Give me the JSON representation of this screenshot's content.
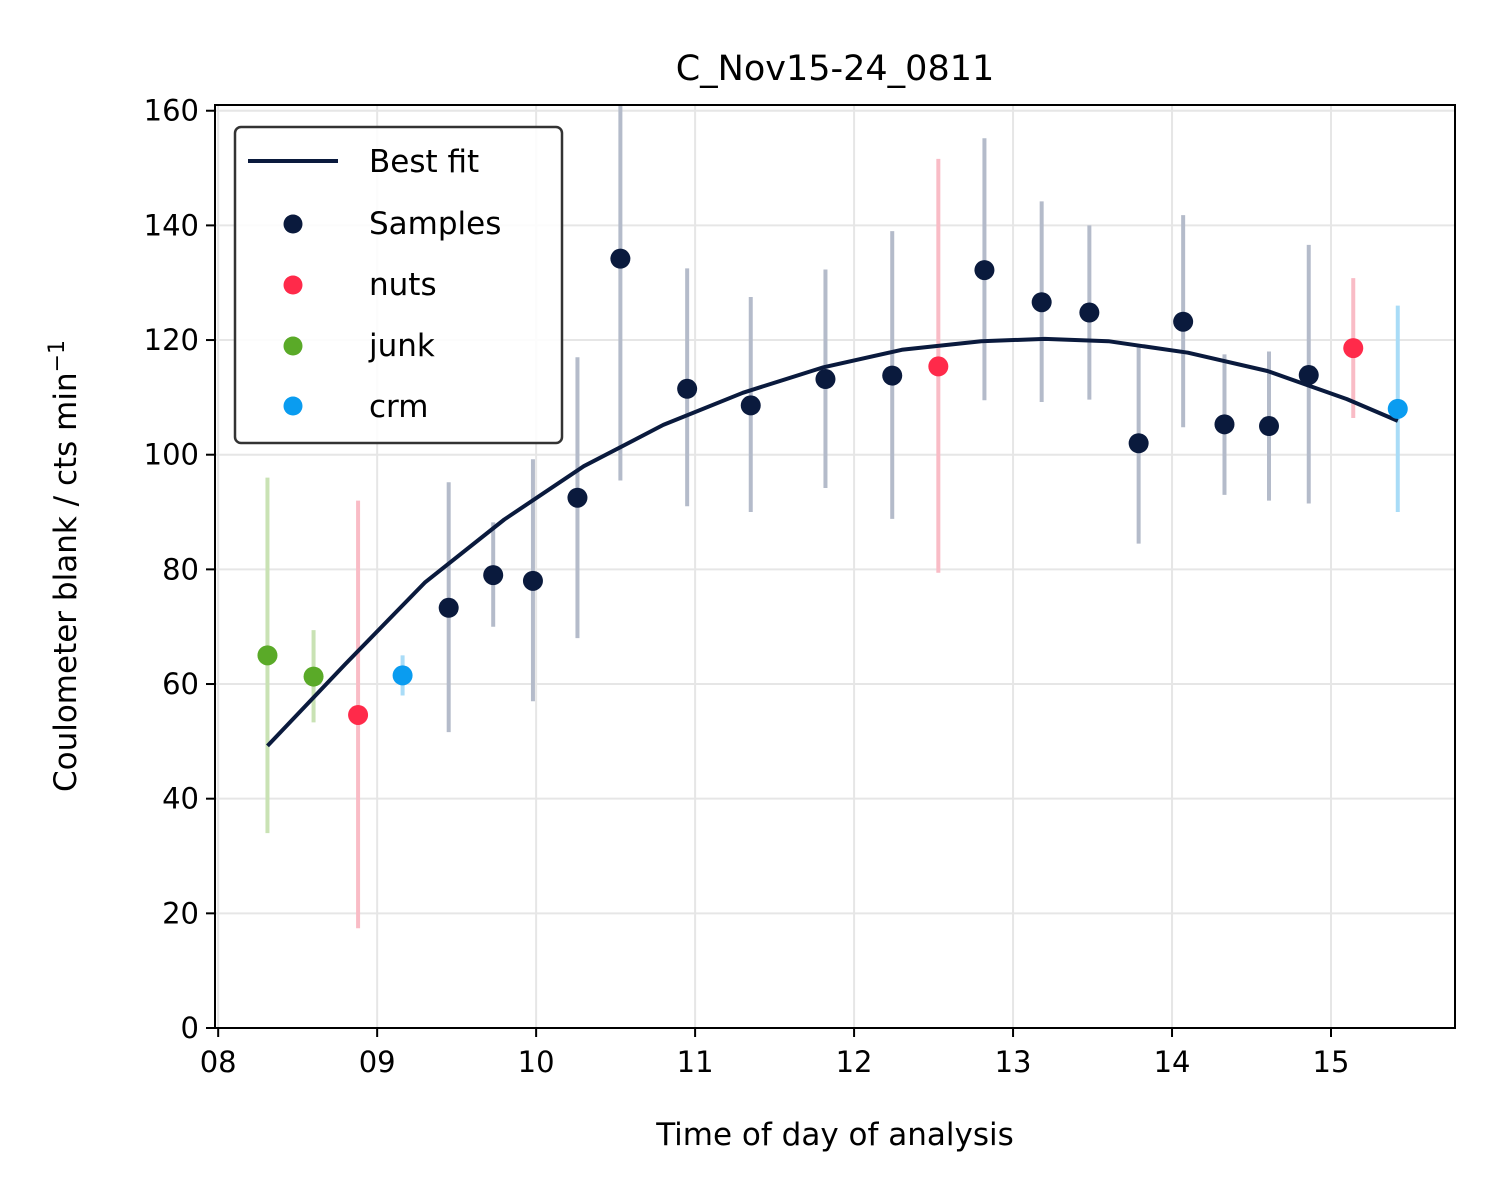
{
  "chart_data": {
    "type": "scatter",
    "title": "C_Nov15-24_0811",
    "xlabel": "Time of day of analysis",
    "ylabel_main": "Coulometer blank / cts min",
    "ylabel_sup": "−1",
    "xlim": [
      7.98,
      15.78
    ],
    "ylim": [
      0,
      161
    ],
    "x_ticks": [
      8,
      9,
      10,
      11,
      12,
      13,
      14,
      15
    ],
    "x_tick_labels": [
      "08",
      "09",
      "10",
      "11",
      "12",
      "13",
      "14",
      "15"
    ],
    "y_ticks": [
      0,
      20,
      40,
      60,
      80,
      100,
      120,
      140,
      160
    ],
    "y_tick_labels": [
      "0",
      "20",
      "40",
      "60",
      "80",
      "100",
      "120",
      "140",
      "160"
    ],
    "grid": true,
    "legend_position": "upper-left",
    "legend": [
      {
        "label": "Best fit",
        "kind": "line",
        "color": "#0a1a3d"
      },
      {
        "label": "Samples",
        "kind": "point",
        "color": "#0a1a3d"
      },
      {
        "label": "nuts",
        "kind": "point",
        "color": "#ff2a4a"
      },
      {
        "label": "junk",
        "kind": "point",
        "color": "#5aaa28"
      },
      {
        "label": "crm",
        "kind": "point",
        "color": "#0a9cf0"
      }
    ],
    "series": [
      {
        "name": "Samples",
        "color": "#0a1a3d",
        "errcolor": "#b4bbca",
        "points": [
          {
            "x": 9.45,
            "y": 73.3,
            "lo": 51.6,
            "hi": 95.2
          },
          {
            "x": 9.73,
            "y": 79.0,
            "lo": 70.0,
            "hi": 88.2
          },
          {
            "x": 9.98,
            "y": 78.0,
            "lo": 57.0,
            "hi": 99.2
          },
          {
            "x": 10.26,
            "y": 92.5,
            "lo": 68.0,
            "hi": 117.0
          },
          {
            "x": 10.53,
            "y": 134.2,
            "lo": 95.5,
            "hi": 161.0
          },
          {
            "x": 10.95,
            "y": 111.5,
            "lo": 91.0,
            "hi": 132.5
          },
          {
            "x": 11.35,
            "y": 108.6,
            "lo": 90.0,
            "hi": 127.5
          },
          {
            "x": 11.82,
            "y": 113.2,
            "lo": 94.2,
            "hi": 132.3
          },
          {
            "x": 12.24,
            "y": 113.8,
            "lo": 88.8,
            "hi": 139.0
          },
          {
            "x": 12.82,
            "y": 132.2,
            "lo": 109.5,
            "hi": 155.2
          },
          {
            "x": 13.18,
            "y": 126.6,
            "lo": 109.2,
            "hi": 144.2
          },
          {
            "x": 13.48,
            "y": 124.8,
            "lo": 109.6,
            "hi": 140.0
          },
          {
            "x": 13.79,
            "y": 102.0,
            "lo": 84.5,
            "hi": 119.3
          },
          {
            "x": 14.07,
            "y": 123.2,
            "lo": 104.8,
            "hi": 141.8
          },
          {
            "x": 14.33,
            "y": 105.3,
            "lo": 93.0,
            "hi": 117.5
          },
          {
            "x": 14.61,
            "y": 105.0,
            "lo": 92.0,
            "hi": 118.0
          },
          {
            "x": 14.86,
            "y": 113.9,
            "lo": 91.5,
            "hi": 136.6
          }
        ]
      },
      {
        "name": "nuts",
        "color": "#ff2a4a",
        "errcolor": "#f9bcc6",
        "points": [
          {
            "x": 8.88,
            "y": 54.6,
            "lo": 17.4,
            "hi": 92.0
          },
          {
            "x": 12.53,
            "y": 115.4,
            "lo": 79.4,
            "hi": 151.6
          },
          {
            "x": 15.14,
            "y": 118.6,
            "lo": 106.4,
            "hi": 130.8
          }
        ]
      },
      {
        "name": "junk",
        "color": "#5aaa28",
        "errcolor": "#c9e2b4",
        "points": [
          {
            "x": 8.31,
            "y": 65.0,
            "lo": 34.0,
            "hi": 96.0
          },
          {
            "x": 8.6,
            "y": 61.3,
            "lo": 53.3,
            "hi": 69.4
          }
        ]
      },
      {
        "name": "crm",
        "color": "#0a9cf0",
        "errcolor": "#a9dcf7",
        "points": [
          {
            "x": 9.16,
            "y": 61.5,
            "lo": 58.0,
            "hi": 65.0
          },
          {
            "x": 15.42,
            "y": 108.0,
            "lo": 90.0,
            "hi": 126.0
          }
        ]
      }
    ],
    "best_fit": {
      "name": "Best fit",
      "color": "#0a1a3d",
      "x": [
        8.31,
        8.8,
        9.3,
        9.8,
        10.3,
        10.8,
        11.3,
        11.8,
        12.3,
        12.8,
        13.2,
        13.6,
        14.1,
        14.6,
        15.1,
        15.42
      ],
      "y": [
        49.2,
        63.5,
        77.7,
        88.7,
        98.0,
        105.2,
        110.8,
        115.2,
        118.3,
        119.8,
        120.2,
        119.8,
        117.8,
        114.6,
        109.7,
        105.9
      ]
    }
  }
}
